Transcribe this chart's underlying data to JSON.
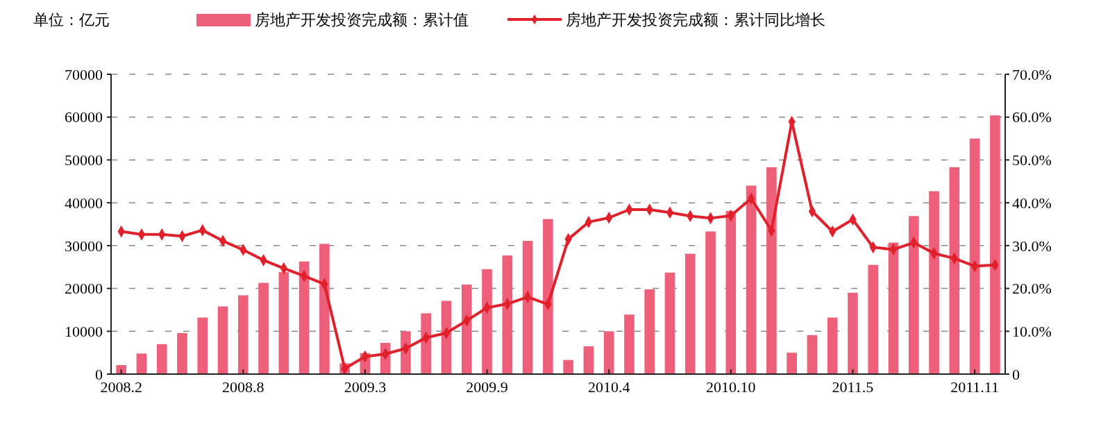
{
  "chart_data": {
    "type": "bar",
    "ylabel": "单位：亿元",
    "categories": [
      "2008.2",
      null,
      null,
      null,
      null,
      null,
      "2008.8",
      null,
      null,
      null,
      null,
      null,
      "2009.3",
      null,
      null,
      null,
      null,
      null,
      "2009.9",
      null,
      null,
      null,
      null,
      null,
      "2010.4",
      null,
      null,
      null,
      null,
      null,
      "2010.10",
      null,
      null,
      null,
      null,
      null,
      "2011.5",
      null,
      null,
      null,
      null,
      null,
      "2011.11",
      null
    ],
    "series": [
      {
        "name": "房地产开发投资完成额：累计值",
        "color": "#ee5f7a",
        "values": [
          2100,
          4800,
          7000,
          9600,
          13200,
          15800,
          18400,
          21300,
          23800,
          26300,
          30400,
          2500,
          4900,
          7300,
          10000,
          14200,
          17100,
          20900,
          24500,
          27700,
          31100,
          36200,
          3300,
          6500,
          10000,
          13900,
          19800,
          23700,
          28100,
          33300,
          38100,
          44000,
          48300,
          5000,
          9100,
          13200,
          19000,
          25500,
          30700,
          36900,
          42700,
          48300,
          55000,
          60400
        ]
      },
      {
        "name": "房地产开发投资完成额：累计同比增长",
        "type": "line",
        "axis": "y2",
        "color": "#e0202a",
        "marker": "diamond",
        "values": [
          33.3,
          32.6,
          32.6,
          32.2,
          33.6,
          31.1,
          29.0,
          26.6,
          24.7,
          22.9,
          21.0,
          1.3,
          4.1,
          4.7,
          6.0,
          8.5,
          9.6,
          12.5,
          15.5,
          16.4,
          18.0,
          16.3,
          31.5,
          35.5,
          36.5,
          38.4,
          38.4,
          37.7,
          36.9,
          36.4,
          37.0,
          41.0,
          33.5,
          58.9,
          38.0,
          33.3,
          36.1,
          29.6,
          29.1,
          30.7,
          28.2,
          27.0,
          25.2,
          25.5
        ]
      }
    ],
    "ylim": [
      0,
      70000
    ],
    "yticks": [
      0,
      10000,
      20000,
      30000,
      40000,
      50000,
      60000,
      70000
    ],
    "y2lim": [
      0,
      70
    ],
    "y2ticks": [
      0,
      {
        "value": 10,
        "label": "10.0%"
      },
      {
        "value": 20,
        "label": "20.0%"
      },
      {
        "value": 30,
        "label": "30.0%"
      },
      {
        "value": 40,
        "label": "40.0%"
      },
      {
        "value": 50,
        "label": "50.0%"
      },
      {
        "value": 60,
        "label": "60.0%"
      },
      {
        "value": 70,
        "label": "70.0%"
      }
    ],
    "grid": "y",
    "legend": "top"
  }
}
